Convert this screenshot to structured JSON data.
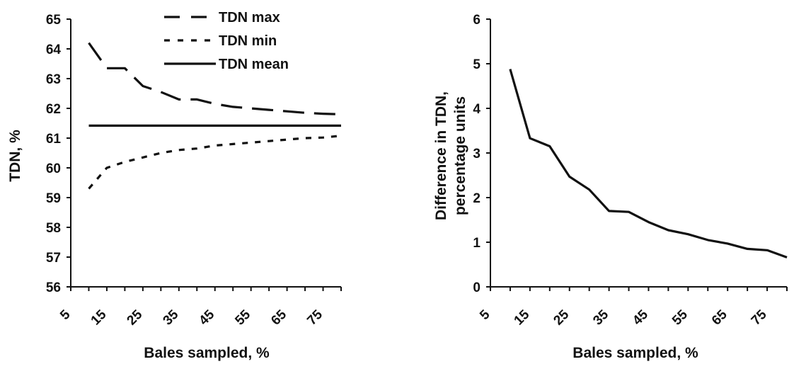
{
  "chart_data": [
    {
      "type": "line",
      "xlabel": "Bales sampled, %",
      "ylabel": "TDN, %",
      "x_tick_labels": [
        "5",
        "15",
        "25",
        "35",
        "45",
        "55",
        "65",
        "75"
      ],
      "y_tick_labels": [
        "56",
        "57",
        "58",
        "59",
        "60",
        "61",
        "62",
        "63",
        "64",
        "65"
      ],
      "xlim": [
        5,
        80
      ],
      "ylim": [
        56,
        65
      ],
      "grid": false,
      "legend_position": "top-right",
      "series": [
        {
          "name": "TDN max",
          "style": "dashed",
          "x": [
            10,
            15,
            20,
            25,
            30,
            35,
            40,
            45,
            50,
            55,
            60,
            65,
            70,
            75,
            80
          ],
          "values": [
            64.2,
            63.35,
            63.35,
            62.75,
            62.55,
            62.3,
            62.3,
            62.15,
            62.05,
            62.0,
            61.95,
            61.9,
            61.85,
            61.82,
            61.8
          ]
        },
        {
          "name": "TDN min",
          "style": "dotted",
          "x": [
            10,
            15,
            20,
            25,
            30,
            35,
            40,
            45,
            50,
            55,
            60,
            65,
            70,
            75,
            80
          ],
          "values": [
            59.3,
            60.0,
            60.2,
            60.35,
            60.5,
            60.6,
            60.65,
            60.75,
            60.8,
            60.85,
            60.9,
            60.95,
            61.0,
            61.02,
            61.08
          ]
        },
        {
          "name": "TDN mean",
          "style": "solid",
          "x": [
            10,
            80
          ],
          "values": [
            61.42,
            61.42
          ]
        }
      ]
    },
    {
      "type": "line",
      "xlabel": "Bales sampled, %",
      "ylabel": "Difference in TDN, percentage units",
      "ylabel_lines": [
        "Difference in TDN,",
        "percentage units"
      ],
      "x_tick_labels": [
        "5",
        "15",
        "25",
        "35",
        "45",
        "55",
        "65",
        "75"
      ],
      "y_tick_labels": [
        "0",
        "1",
        "2",
        "3",
        "4",
        "5",
        "6"
      ],
      "xlim": [
        5,
        80
      ],
      "ylim": [
        0,
        6
      ],
      "grid": false,
      "series": [
        {
          "style": "solid",
          "x": [
            10,
            15,
            20,
            25,
            30,
            35,
            40,
            45,
            50,
            55,
            60,
            65,
            70,
            75,
            80
          ],
          "values": [
            4.88,
            3.33,
            3.15,
            2.47,
            2.18,
            1.7,
            1.68,
            1.45,
            1.27,
            1.18,
            1.05,
            0.97,
            0.85,
            0.82,
            0.66
          ]
        }
      ]
    }
  ]
}
